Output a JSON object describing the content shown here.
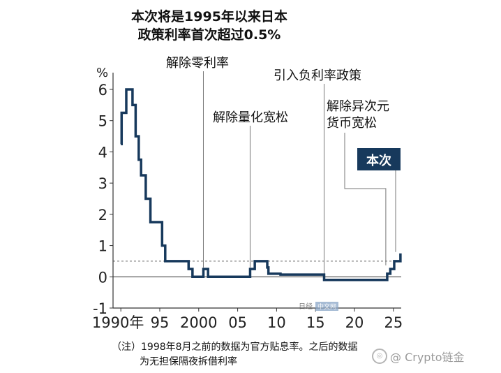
{
  "title_lines": [
    "本次将是1995年以来日本",
    "政策利率首次超过0.5%"
  ],
  "notes": [
    "（注）1998年8月之前的数据为官方贴息率。之后的数据",
    "为无担保隔夜拆借利率"
  ],
  "watermarks": {
    "brand": "日经",
    "brand_tag": "中文网",
    "crypto": "@ Crypto链金"
  },
  "colors": {
    "line": "#17395c",
    "axis": "#333333",
    "leader": "#777777",
    "badge_bg": "#17395c",
    "badge_text": "#ffffff"
  },
  "chart_data": {
    "type": "line",
    "title": "本次将是1995年以来日本政策利率首次超过0.5%",
    "y_unit": "%",
    "xlim": [
      1989,
      2026
    ],
    "ylim": [
      -1,
      6
    ],
    "y_ticks": [
      -1,
      0,
      1,
      2,
      3,
      4,
      5,
      6
    ],
    "y_tick_labels": [
      "-1",
      "0",
      "1",
      "2",
      "3",
      "4",
      "5",
      "6"
    ],
    "x_ticks": [
      1990,
      1995,
      2000,
      2005,
      2010,
      2015,
      2020,
      2025
    ],
    "x_tick_labels": [
      "1990年",
      "95",
      "2000",
      "05",
      "10",
      "15",
      "20",
      "25"
    ],
    "reference_line": 0.5,
    "series": [
      {
        "values_xy": [
          [
            1990.0,
            4.25
          ],
          [
            1990.1,
            5.25
          ],
          [
            1990.7,
            6.0
          ],
          [
            1991.5,
            5.5
          ],
          [
            1991.9,
            4.5
          ],
          [
            1992.3,
            3.75
          ],
          [
            1992.6,
            3.25
          ],
          [
            1993.2,
            2.5
          ],
          [
            1993.8,
            1.75
          ],
          [
            1995.3,
            1.0
          ],
          [
            1995.7,
            0.5
          ],
          [
            1998.7,
            0.25
          ],
          [
            1999.2,
            0.0
          ],
          [
            2000.6,
            0.25
          ],
          [
            2001.2,
            0.0
          ],
          [
            2006.6,
            0.25
          ],
          [
            2007.2,
            0.5
          ],
          [
            2008.8,
            0.3
          ],
          [
            2008.95,
            0.1
          ],
          [
            2010.5,
            0.07
          ],
          [
            2016.1,
            -0.1
          ],
          [
            2024.2,
            0.1
          ],
          [
            2024.6,
            0.25
          ],
          [
            2025.1,
            0.5
          ],
          [
            2025.9,
            0.75
          ]
        ]
      }
    ],
    "annotations": [
      {
        "text": "解除零利率",
        "x": 2000.6
      },
      {
        "text": "解除量化宽松",
        "x": 2006.6
      },
      {
        "text": "引入负利率政策",
        "x": 2016.1
      },
      {
        "lines": [
          "解除异次元",
          "货币宽松"
        ],
        "x": 2024.2
      },
      {
        "text": "本次",
        "x": 2025.9,
        "style": "badge"
      }
    ]
  }
}
